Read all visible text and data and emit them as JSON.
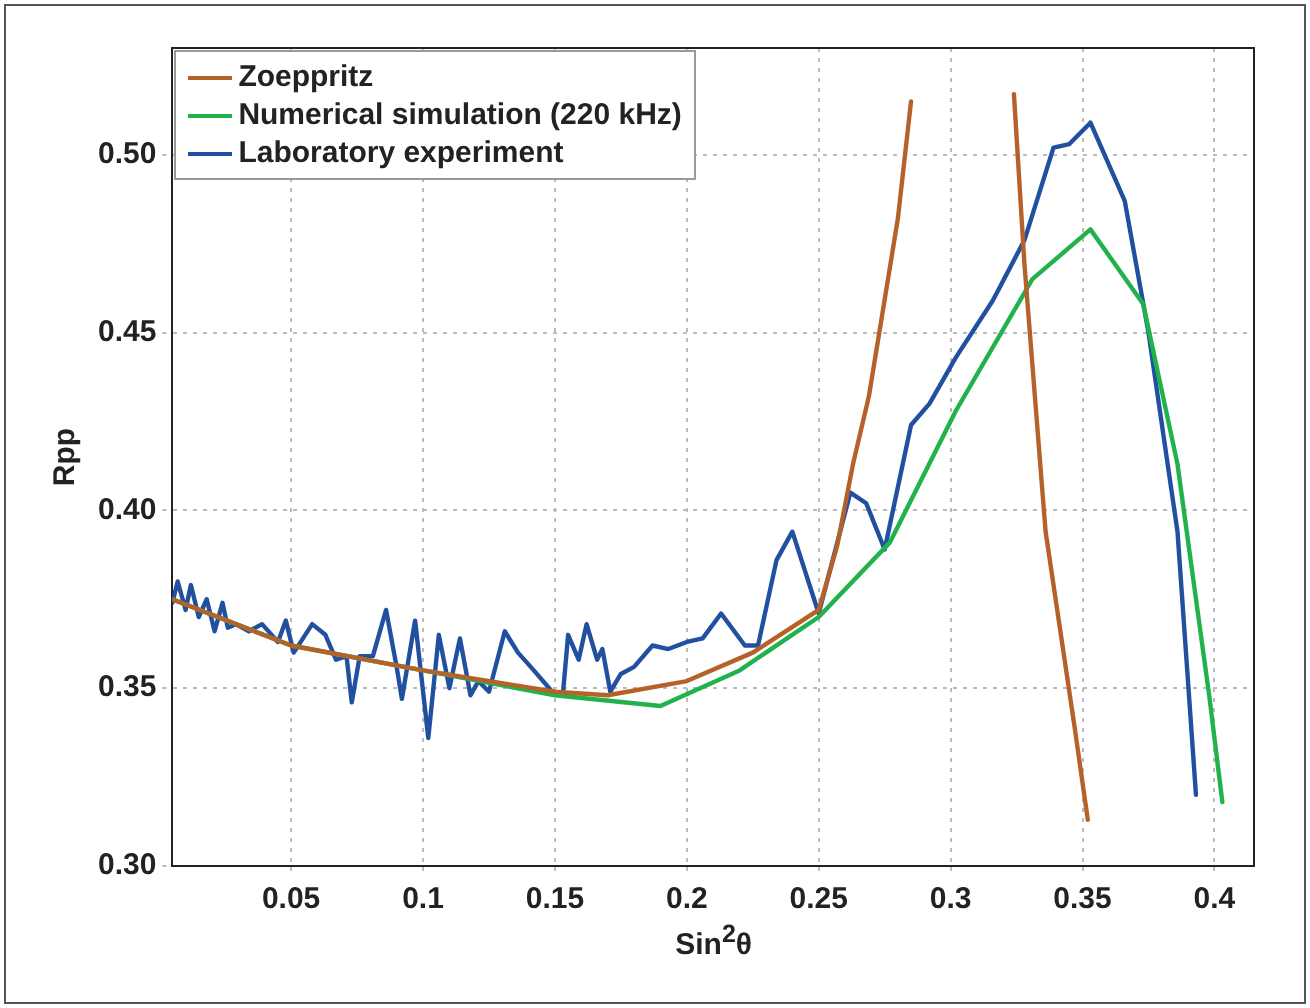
{
  "chart_data": {
    "type": "line",
    "xlabel": "Sin$^{2}$θ",
    "ylabel": "Rpp",
    "xlim": [
      0.005,
      0.415
    ],
    "ylim": [
      0.3,
      0.53
    ],
    "xticks": [
      0.05,
      0.1,
      0.15,
      0.2,
      0.25,
      0.3,
      0.35,
      0.4
    ],
    "yticks": [
      {
        "value": 0.3,
        "label": "0.30"
      },
      {
        "value": 0.35,
        "label": "0.35"
      },
      {
        "value": 0.4,
        "label": "0.40"
      },
      {
        "value": 0.45,
        "label": "0.45"
      },
      {
        "value": 0.5,
        "label": "0.50"
      }
    ],
    "grid": true,
    "legend": "top left",
    "marker": "none",
    "line_style": "solid",
    "series": [
      {
        "name": "Zoeppritz",
        "color": "#b5622a",
        "x": [
          0.005,
          0.05,
          0.1,
          0.15,
          0.17,
          0.2,
          0.225,
          0.25,
          0.257,
          0.263,
          0.269,
          0.28,
          0.285,
          0.3,
          0.324,
          0.328,
          0.336,
          0.347,
          0.352
        ],
        "values": [
          0.375,
          0.362,
          0.355,
          0.349,
          0.348,
          0.352,
          0.36,
          0.372,
          0.39,
          0.413,
          0.432,
          0.482,
          0.515,
          null,
          0.517,
          0.469,
          0.394,
          0.339,
          0.313
        ]
      },
      {
        "name": "Numerical simulation (220 kHz)",
        "color": "#22b24c",
        "x": [
          0.005,
          0.05,
          0.1,
          0.15,
          0.19,
          0.22,
          0.25,
          0.277,
          0.302,
          0.331,
          0.353,
          0.373,
          0.386,
          0.398,
          0.403
        ],
        "values": [
          0.375,
          0.362,
          0.355,
          0.348,
          0.345,
          0.355,
          0.37,
          0.391,
          0.428,
          0.465,
          0.479,
          0.458,
          0.413,
          0.348,
          0.318
        ]
      },
      {
        "name": "Laboratory experiment",
        "color": "#2250a0",
        "x": [
          0.005,
          0.007,
          0.01,
          0.012,
          0.015,
          0.018,
          0.021,
          0.024,
          0.026,
          0.029,
          0.034,
          0.039,
          0.045,
          0.048,
          0.051,
          0.058,
          0.063,
          0.067,
          0.071,
          0.073,
          0.076,
          0.081,
          0.086,
          0.09,
          0.092,
          0.097,
          0.102,
          0.106,
          0.11,
          0.114,
          0.118,
          0.121,
          0.125,
          0.131,
          0.136,
          0.142,
          0.149,
          0.153,
          0.155,
          0.159,
          0.162,
          0.166,
          0.168,
          0.171,
          0.175,
          0.18,
          0.187,
          0.193,
          0.2,
          0.206,
          0.213,
          0.222,
          0.227,
          0.234,
          0.24,
          0.25,
          0.262,
          0.268,
          0.275,
          0.285,
          0.292,
          0.302,
          0.316,
          0.328,
          0.339,
          0.345,
          0.353,
          0.366,
          0.375,
          0.386,
          0.393
        ],
        "values": [
          0.374,
          0.38,
          0.372,
          0.379,
          0.37,
          0.375,
          0.366,
          0.374,
          0.367,
          0.368,
          0.366,
          0.368,
          0.363,
          0.369,
          0.36,
          0.368,
          0.365,
          0.358,
          0.359,
          0.346,
          0.359,
          0.359,
          0.372,
          0.356,
          0.347,
          0.369,
          0.336,
          0.365,
          0.35,
          0.364,
          0.348,
          0.352,
          0.349,
          0.366,
          0.36,
          0.355,
          0.349,
          0.348,
          0.365,
          0.358,
          0.368,
          0.358,
          0.361,
          0.349,
          0.354,
          0.356,
          0.362,
          0.361,
          0.363,
          0.364,
          0.371,
          0.362,
          0.362,
          0.386,
          0.394,
          0.371,
          0.405,
          0.402,
          0.389,
          0.424,
          0.43,
          0.443,
          0.459,
          0.476,
          0.502,
          0.503,
          0.509,
          0.487,
          0.45,
          0.394,
          0.32
        ]
      }
    ]
  }
}
